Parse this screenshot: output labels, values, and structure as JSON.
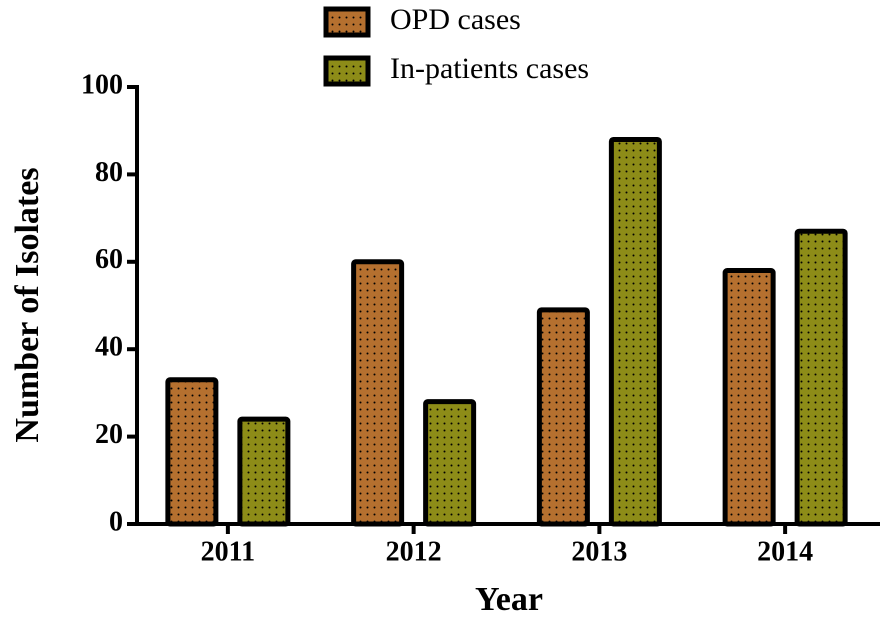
{
  "chart_data": {
    "type": "bar",
    "categories": [
      "2011",
      "2012",
      "2013",
      "2014"
    ],
    "series": [
      {
        "name": "OPD cases",
        "color": "#b5702f",
        "values": [
          33,
          60,
          49,
          58
        ]
      },
      {
        "name": "In-patients cases",
        "color": "#8d8c18",
        "values": [
          24,
          28,
          88,
          67
        ]
      }
    ],
    "xlabel": "Year",
    "ylabel": "Number of Isolates",
    "ylim": [
      0,
      100
    ],
    "yticks": [
      0,
      20,
      40,
      60,
      80,
      100
    ]
  }
}
